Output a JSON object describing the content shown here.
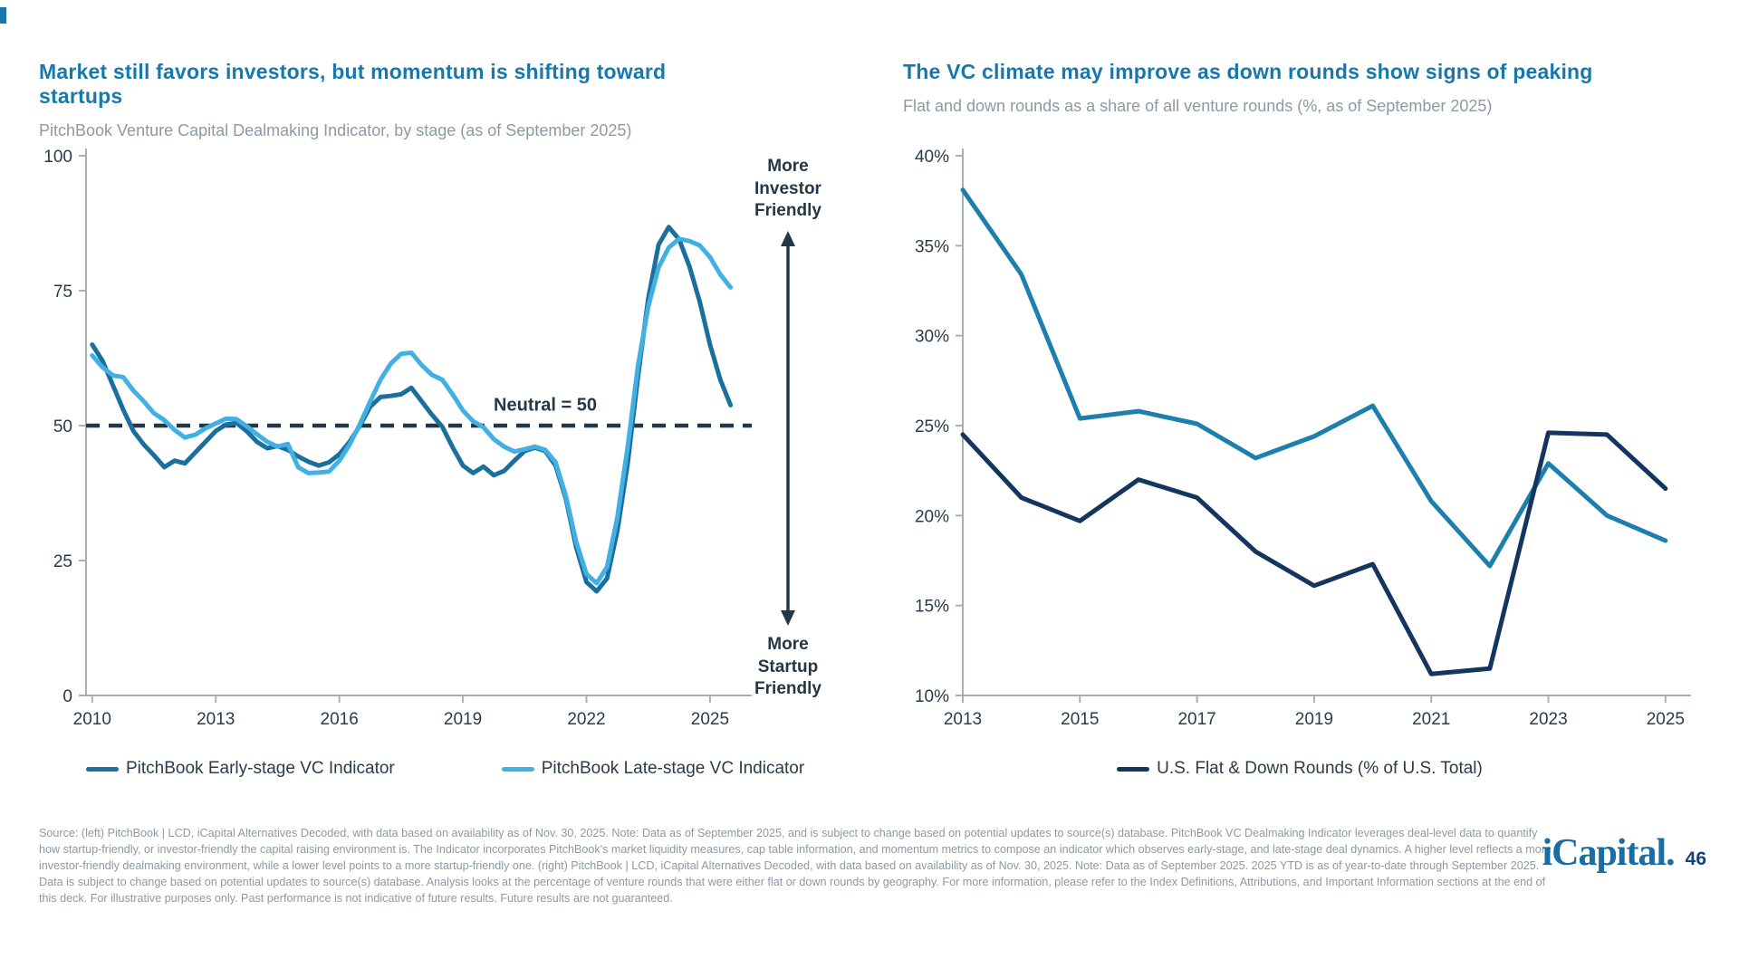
{
  "page": {
    "accent_color": "#1878ab",
    "logo_text": "iCapital.",
    "page_number": "46"
  },
  "footer": {
    "lines": [
      "Source: (left) PitchBook | LCD, iCapital Alternatives Decoded, with data based on availability as of Nov. 30, 2025. Note: Data as of September 2025, and is subject to change based on potential updates to source(s) database. PitchBook VC Dealmaking Indicator leverages deal-level data to quantify",
      "how startup-friendly, or investor-friendly the capital raising environment is. The Indicator incorporates PitchBook's market liquidity measures, cap table information, and momentum metrics to compose an indicator which observes early-stage, and late-stage deal dynamics. A higher level reflects a more",
      "investor-friendly dealmaking environment, while a lower level points to a more startup-friendly one. (right) PitchBook | LCD, iCapital Alternatives Decoded, with data based on availability as of Nov. 30, 2025. Note: Data as of September 2025. 2025 YTD is as of year-to-date through September 2025.",
      "Data is subject to change based on potential updates to source(s) database. Analysis looks at the percentage of venture rounds that were either flat or down rounds by geography. For more information, please refer to the Index Definitions, Attributions, and Important Information sections at the end of",
      "this deck. For illustrative purposes only. Past performance is not indicative of future results. Future results are not guaranteed."
    ]
  },
  "chart_data": [
    {
      "type": "line",
      "title": "Market still favors investors, but momentum is shifting toward startups",
      "subtitle": "PitchBook Venture Capital Dealmaking Indicator, by stage (as of September 2025)",
      "xlabel": "",
      "ylabel": "",
      "xlim": [
        2009.85,
        2025.75
      ],
      "ylim": [
        0,
        100
      ],
      "x_ticks": [
        2010,
        2013,
        2016,
        2019,
        2022,
        2025
      ],
      "y_ticks": [
        0,
        25,
        50,
        75,
        100
      ],
      "grid": false,
      "legend_position": "bottom",
      "ref_line": {
        "y": 50,
        "label": "Neutral = 50",
        "label_x": 2021,
        "label_y": 52.8
      },
      "annotations": {
        "top": "More\nInvestor\nFriendly",
        "bottom": "More\nStartup\nFriendly"
      },
      "x": [
        2010,
        2010.25,
        2010.5,
        2010.75,
        2011,
        2011.25,
        2011.5,
        2011.75,
        2012,
        2012.25,
        2012.5,
        2012.75,
        2013,
        2013.25,
        2013.5,
        2013.75,
        2014,
        2014.25,
        2014.5,
        2014.75,
        2015,
        2015.25,
        2015.5,
        2015.75,
        2016,
        2016.25,
        2016.5,
        2016.75,
        2017,
        2017.25,
        2017.5,
        2017.75,
        2018,
        2018.25,
        2018.5,
        2018.75,
        2019,
        2019.25,
        2019.5,
        2019.75,
        2020,
        2020.25,
        2020.5,
        2020.75,
        2021,
        2021.25,
        2021.5,
        2021.75,
        2022,
        2022.25,
        2022.5,
        2022.75,
        2023,
        2023.25,
        2023.5,
        2023.75,
        2024,
        2024.25,
        2024.5,
        2024.75,
        2025,
        2025.25,
        2025.5
      ],
      "series": [
        {
          "name": "PitchBook Early-stage VC Indicator",
          "color": "#1b6f9e",
          "values": [
            65,
            62,
            57.5,
            53,
            49,
            46.5,
            44.5,
            42.3,
            43.5,
            43,
            45,
            47,
            49,
            50.2,
            50.5,
            49,
            47,
            45.8,
            46.2,
            45.5,
            44.3,
            43.3,
            42.6,
            43.2,
            44.7,
            47,
            50,
            53.5,
            55.3,
            55.5,
            55.8,
            57,
            54.5,
            52,
            49.8,
            46,
            42.6,
            41.2,
            42.4,
            40.8,
            41.6,
            43.5,
            45.3,
            45.9,
            45.3,
            42.6,
            36.5,
            27.5,
            21,
            19.3,
            21.7,
            30.5,
            43,
            59,
            73.5,
            83.5,
            86.8,
            84.5,
            79.5,
            73,
            65,
            58.5,
            53.8
          ]
        },
        {
          "name": "PitchBook Late-stage VC Indicator",
          "color": "#41b0e3",
          "values": [
            63,
            60.8,
            59.3,
            59,
            56.5,
            54.5,
            52.3,
            51,
            49.2,
            47.8,
            48.3,
            49.5,
            50.4,
            51.3,
            51.2,
            49.9,
            48.4,
            47,
            46.1,
            46.6,
            42.3,
            41.2,
            41.3,
            41.5,
            43.5,
            46.5,
            50.3,
            54.5,
            58.5,
            61.5,
            63.3,
            63.5,
            61.2,
            59.4,
            58.5,
            55.8,
            52.8,
            50.8,
            49.7,
            47.5,
            46.1,
            45.2,
            45.6,
            46.1,
            45.5,
            43.2,
            37,
            28.5,
            22.5,
            20.8,
            23.8,
            33,
            46,
            61,
            72,
            79.3,
            83,
            84.6,
            84.2,
            83.4,
            81.2,
            78,
            75.6
          ]
        }
      ]
    },
    {
      "type": "line",
      "title": "The VC climate may improve as down rounds show signs of peaking",
      "subtitle": "Flat and down rounds as a share of all venture rounds (%, as of September 2025)",
      "xlabel": "",
      "ylabel": "",
      "xlim": [
        2013,
        2025.25
      ],
      "ylim": [
        10,
        40
      ],
      "x_ticks": [
        2013,
        2015,
        2017,
        2019,
        2021,
        2023,
        2025
      ],
      "y_ticks": [
        10,
        15,
        20,
        25,
        30,
        35,
        40
      ],
      "y_suffix": "%",
      "grid": false,
      "legend_position": "bottom",
      "x": [
        2013,
        2014,
        2015,
        2016,
        2017,
        2018,
        2019,
        2020,
        2021,
        2022,
        2023,
        2024,
        2025
      ],
      "series": [
        {
          "name": "",
          "in_legend": false,
          "color": "#1d7fae",
          "values": [
            38.1,
            33.4,
            25.4,
            25.8,
            25.1,
            23.2,
            24.4,
            26.1,
            20.8,
            17.2,
            22.9,
            20,
            18.6
          ]
        },
        {
          "name": "U.S. Flat & Down Rounds (% of U.S. Total)",
          "in_legend": true,
          "color": "#13355f",
          "values": [
            24.5,
            21,
            19.7,
            22,
            21,
            18,
            16.1,
            17.3,
            11.2,
            11.5,
            24.6,
            24.5,
            21.5
          ]
        }
      ]
    }
  ]
}
